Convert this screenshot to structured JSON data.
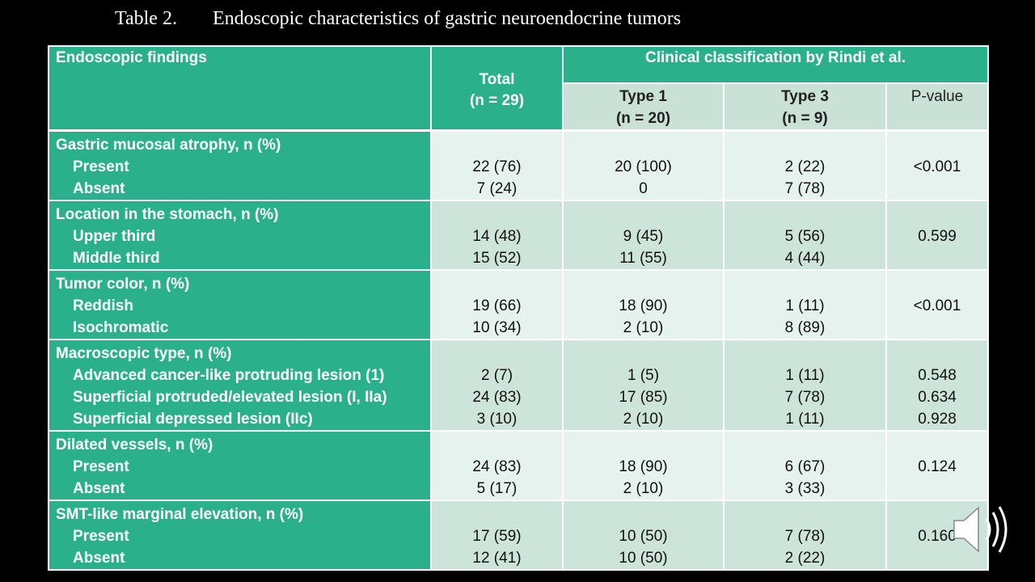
{
  "title": {
    "number": "Table 2.",
    "text": "Endoscopic characteristics of gastric neuroendocrine tumors"
  },
  "header": {
    "findings": "Endoscopic findings",
    "total_line1": "Total",
    "total_line2": "(n = 29)",
    "classification": "Clinical classification by Rindi et al.",
    "type1_line1": "Type 1",
    "type1_line2": "(n = 20)",
    "type3_line1": "Type 3",
    "type3_line2": "(n = 9)",
    "pvalue": "P-value"
  },
  "groups": [
    {
      "label": "Gastric mucosal atrophy, n (%)",
      "items": [
        "Present",
        "Absent"
      ],
      "total": [
        "22 (76)",
        "7 (24)"
      ],
      "type1": [
        "20 (100)",
        "0"
      ],
      "type3": [
        "2 (22)",
        "7 (78)"
      ],
      "pvalue": [
        "<0.001"
      ]
    },
    {
      "label": "Location in the stomach, n (%)",
      "items": [
        "Upper third",
        "Middle third"
      ],
      "total": [
        "14 (48)",
        "15 (52)"
      ],
      "type1": [
        "9 (45)",
        "11 (55)"
      ],
      "type3": [
        "5 (56)",
        "4 (44)"
      ],
      "pvalue": [
        "0.599"
      ]
    },
    {
      "label": "Tumor color, n (%)",
      "items": [
        "Reddish",
        "Isochromatic"
      ],
      "total": [
        "19 (66)",
        "10 (34)"
      ],
      "type1": [
        "18 (90)",
        "2 (10)"
      ],
      "type3": [
        "1 (11)",
        "8 (89)"
      ],
      "pvalue": [
        "<0.001"
      ]
    },
    {
      "label": "Macroscopic type, n (%)",
      "items": [
        "Advanced cancer-like protruding lesion (1)",
        "Superficial protruded/elevated lesion (I, IIa)",
        "Superficial depressed lesion (IIc)"
      ],
      "total": [
        "2 (7)",
        "24 (83)",
        "3 (10)"
      ],
      "type1": [
        "1 (5)",
        "17 (85)",
        "2 (10)"
      ],
      "type3": [
        "1 (11)",
        "7 (78)",
        "1 (11)"
      ],
      "pvalue": [
        "0.548",
        "0.634",
        "0.928"
      ]
    },
    {
      "label": "Dilated vessels, n (%)",
      "items": [
        "Present",
        "Absent"
      ],
      "total": [
        "24 (83)",
        "5 (17)"
      ],
      "type1": [
        "18 (90)",
        "2 (10)"
      ],
      "type3": [
        "6 (67)",
        "3 (33)"
      ],
      "pvalue": [
        "0.124"
      ]
    },
    {
      "label": "SMT-like marginal elevation, n (%)",
      "items": [
        "Present",
        "Absent"
      ],
      "total": [
        "17 (59)",
        "12 (41)"
      ],
      "type1": [
        "10 (50)",
        "10 (50)"
      ],
      "type3": [
        "7 (78)",
        "2 (22)"
      ],
      "pvalue": [
        "0.160"
      ]
    }
  ],
  "icons": {
    "speaker": "speaker-icon"
  }
}
